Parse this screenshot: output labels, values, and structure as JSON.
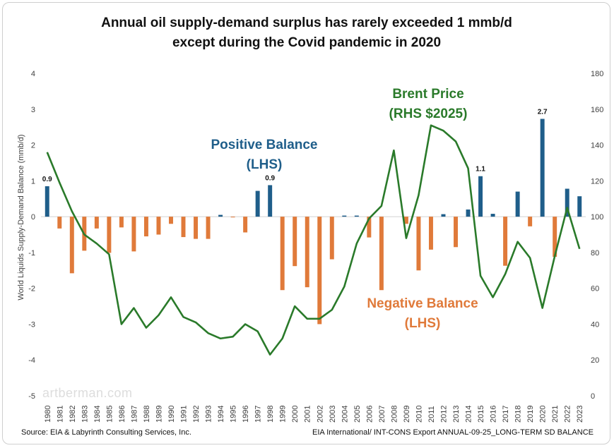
{
  "chart_data": {
    "type": "bar",
    "title_lines": [
      "Annual oil supply-demand surplus has rarely exceeded 1 mmb/d",
      "except during the Covid pandemic in 2020"
    ],
    "ylabel": "World Liquids Supply-Demand Balance (mmb/d)",
    "ylim": [
      -5,
      4
    ],
    "y_ticks": [
      4,
      3,
      2,
      1,
      0,
      -1,
      -2,
      -3,
      -4,
      -5
    ],
    "y2lim": [
      0,
      180
    ],
    "y2_ticks": [
      180,
      160,
      140,
      120,
      100,
      80,
      60,
      40,
      20,
      0
    ],
    "categories": [
      "1980",
      "1981",
      "1982",
      "1983",
      "1984",
      "1985",
      "1986",
      "1987",
      "1988",
      "1989",
      "1990",
      "1991",
      "1992",
      "1993",
      "1994",
      "1995",
      "1996",
      "1997",
      "1998",
      "1999",
      "2000",
      "2001",
      "2002",
      "2003",
      "2004",
      "2005",
      "2006",
      "2007",
      "2008",
      "2009",
      "2010",
      "2011",
      "2012",
      "2013",
      "2014",
      "2015",
      "2016",
      "2017",
      "2018",
      "2019",
      "2020",
      "2021",
      "2022",
      "2023"
    ],
    "series": [
      {
        "name": "Supply-Demand Balance (LHS)",
        "type": "bar",
        "axis": "left",
        "positive_color": "#1f5e8a",
        "negative_color": "#e07a3a",
        "values": [
          0.85,
          -0.33,
          -1.58,
          -0.95,
          -0.33,
          -1.01,
          -0.3,
          -0.97,
          -0.55,
          -0.5,
          -0.2,
          -0.57,
          -0.62,
          -0.62,
          0.05,
          -0.02,
          -0.44,
          0.72,
          0.88,
          -2.05,
          -1.38,
          -1.97,
          -3.0,
          -1.19,
          0.03,
          0.03,
          -0.58,
          -2.05,
          0.0,
          -0.2,
          -1.5,
          -0.92,
          0.07,
          -0.85,
          0.2,
          1.13,
          0.08,
          -1.37,
          0.7,
          -0.27,
          2.73,
          -1.12,
          0.78,
          0.57
        ]
      },
      {
        "name": "Brent Price (RHS $2025)",
        "type": "line",
        "axis": "right",
        "color": "#2a7a2a",
        "values": [
          136,
          119,
          103,
          90,
          85,
          79,
          40,
          49,
          38,
          45,
          55,
          44,
          41,
          35,
          32,
          33,
          40,
          36,
          23,
          32,
          50,
          43,
          43,
          48,
          61,
          85,
          99,
          106,
          137,
          88,
          112,
          151,
          148,
          142,
          127,
          67,
          55,
          68,
          86,
          77,
          49,
          78,
          105,
          82
        ]
      }
    ],
    "data_labels": [
      {
        "category": "1980",
        "text": "0.9"
      },
      {
        "category": "1998",
        "text": "0.9"
      },
      {
        "category": "2015",
        "text": "1.1"
      },
      {
        "category": "2020",
        "text": "2.7"
      }
    ],
    "annotations": {
      "positive": {
        "lines": [
          "Positive Balance",
          "(LHS)"
        ],
        "color": "#1f5e8a"
      },
      "negative": {
        "lines": [
          "Negative Balance",
          "(LHS)"
        ],
        "color": "#e07a3a"
      },
      "brent": {
        "lines": [
          "Brent Price",
          "(RHS $2025)"
        ],
        "color": "#2a7a2a"
      }
    },
    "watermark": "artberman.com",
    "source": "Source:  EIA & Labyrinth Consulting Services, Inc.",
    "file_ref": "EIA International/ INT-CONS Export ANNUAL-09-25_LONG-TERM SD BALANCE"
  }
}
